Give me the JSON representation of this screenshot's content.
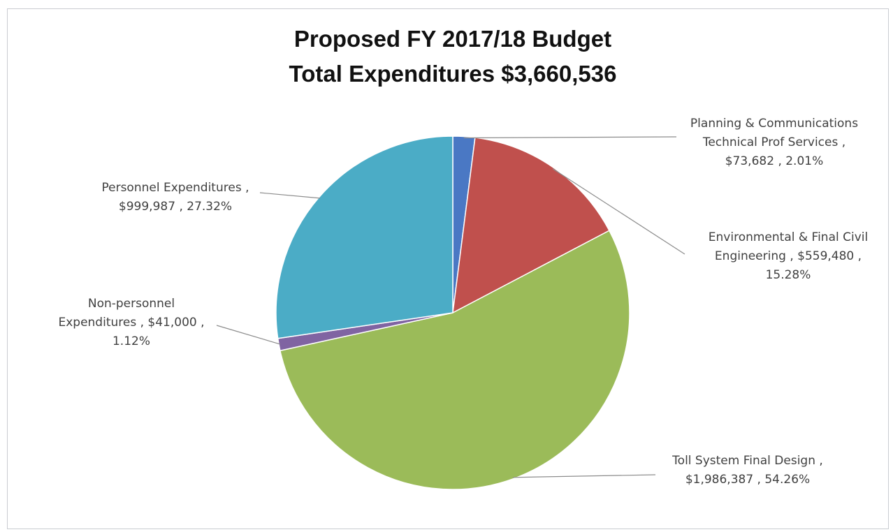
{
  "chart_data": {
    "type": "pie",
    "title": [
      "Proposed FY 2017/18 Budget",
      "Total Expenditures $3,660,536"
    ],
    "slices": [
      {
        "label": [
          "Planning & Communications",
          "Technical Prof Services ,",
          "$73,682 , 2.01%"
        ],
        "value": 73682,
        "percent": 2.01,
        "color": "#4a78c4"
      },
      {
        "label": [
          "Environmental & Final Civil",
          "Engineering , $559,480 ,",
          "15.28%"
        ],
        "value": 559480,
        "percent": 15.28,
        "color": "#c0504d"
      },
      {
        "label": [
          "Toll System Final Design ,",
          "$1,986,387 , 54.26%"
        ],
        "value": 1986387,
        "percent": 54.26,
        "color": "#9bbb59"
      },
      {
        "label": [
          "Non-personnel",
          "Expenditures , $41,000 ,",
          "1.12%"
        ],
        "value": 41000,
        "percent": 1.12,
        "color": "#8064a2"
      },
      {
        "label": [
          "Personnel Expenditures ,",
          "$999,987 , 27.32%"
        ],
        "value": 999987,
        "percent": 27.32,
        "color": "#4bacc6"
      }
    ],
    "start_angle": "top",
    "direction": "clockwise",
    "legend": "none"
  }
}
